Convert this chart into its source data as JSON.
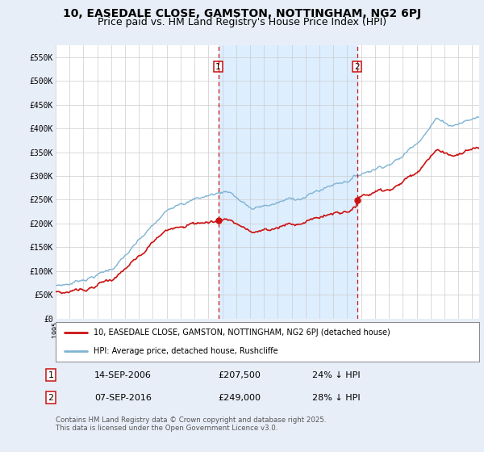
{
  "title": "10, EASEDALE CLOSE, GAMSTON, NOTTINGHAM, NG2 6PJ",
  "subtitle": "Price paid vs. HM Land Registry's House Price Index (HPI)",
  "ylabel_ticks": [
    "£0",
    "£50K",
    "£100K",
    "£150K",
    "£200K",
    "£250K",
    "£300K",
    "£350K",
    "£400K",
    "£450K",
    "£500K",
    "£550K"
  ],
  "ytick_values": [
    0,
    50000,
    100000,
    150000,
    200000,
    250000,
    300000,
    350000,
    400000,
    450000,
    500000,
    550000
  ],
  "ylim": [
    0,
    575000
  ],
  "xlim": [
    1995,
    2025.5
  ],
  "hpi_color": "#7fb3d3",
  "price_color": "#cc1111",
  "vline_color": "#cc1111",
  "shade_color": "#ddeeff",
  "annotation1": {
    "label": "1",
    "date": "14-SEP-2006",
    "price": "£207,500",
    "pct": "24% ↓ HPI"
  },
  "annotation2": {
    "label": "2",
    "date": "07-SEP-2016",
    "price": "£249,000",
    "pct": "28% ↓ HPI"
  },
  "legend_property": "10, EASEDALE CLOSE, GAMSTON, NOTTINGHAM, NG2 6PJ (detached house)",
  "legend_hpi": "HPI: Average price, detached house, Rushcliffe",
  "footer": "Contains HM Land Registry data © Crown copyright and database right 2025.\nThis data is licensed under the Open Government Licence v3.0.",
  "background_color": "#e8eef8",
  "plot_bg_color": "#ffffff",
  "title_fontsize": 10,
  "subtitle_fontsize": 9,
  "sale1_year_f": 2006.708,
  "sale2_year_f": 2016.708,
  "price1": 207500,
  "price2": 249000
}
